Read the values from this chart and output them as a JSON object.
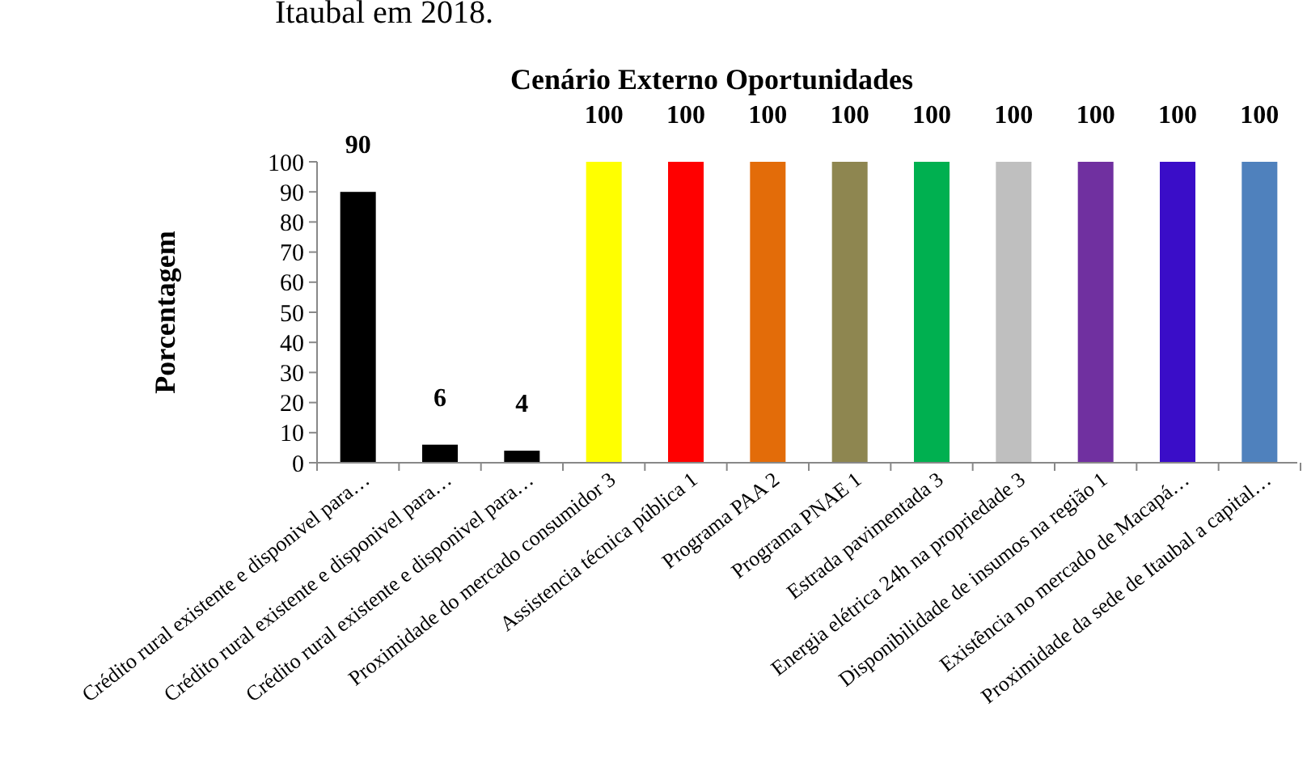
{
  "chart_data": {
    "type": "bar",
    "title": "Cenário Externo Oportunidades",
    "ylabel": "Porcentagem",
    "annotations": [
      "Itaubal em 2018."
    ],
    "categories": [
      "Crédito rural existente e disponivel para…",
      "Crédito rural existente e disponivel para…",
      "Crédito rural existente e disponivel para…",
      "Proximidade do mercado consumidor 3",
      "Assistencia técnica pública 1",
      "Programa PAA 2",
      "Programa PNAE 1",
      "Estrada pavimentada 3",
      "Energia elétrica 24h na propriedade 3",
      "Disponibilidade de insumos na região 1",
      "Existência no mercado de Macapá…",
      "Proximidade da sede de Itaubal a capital…"
    ],
    "values": [
      90,
      6,
      4,
      100,
      100,
      100,
      100,
      100,
      100,
      100,
      100,
      100
    ],
    "colors": [
      "#000000",
      "#000000",
      "#000000",
      "#ffff00",
      "#ff0000",
      "#e36c09",
      "#8e8650",
      "#00b050",
      "#bfbfbf",
      "#7030a0",
      "#3a0dc8",
      "#4f81bd"
    ],
    "ylim": [
      0,
      100
    ],
    "yticks": [
      0,
      10,
      20,
      30,
      40,
      50,
      60,
      70,
      80,
      90,
      100
    ],
    "data_labels": true
  }
}
